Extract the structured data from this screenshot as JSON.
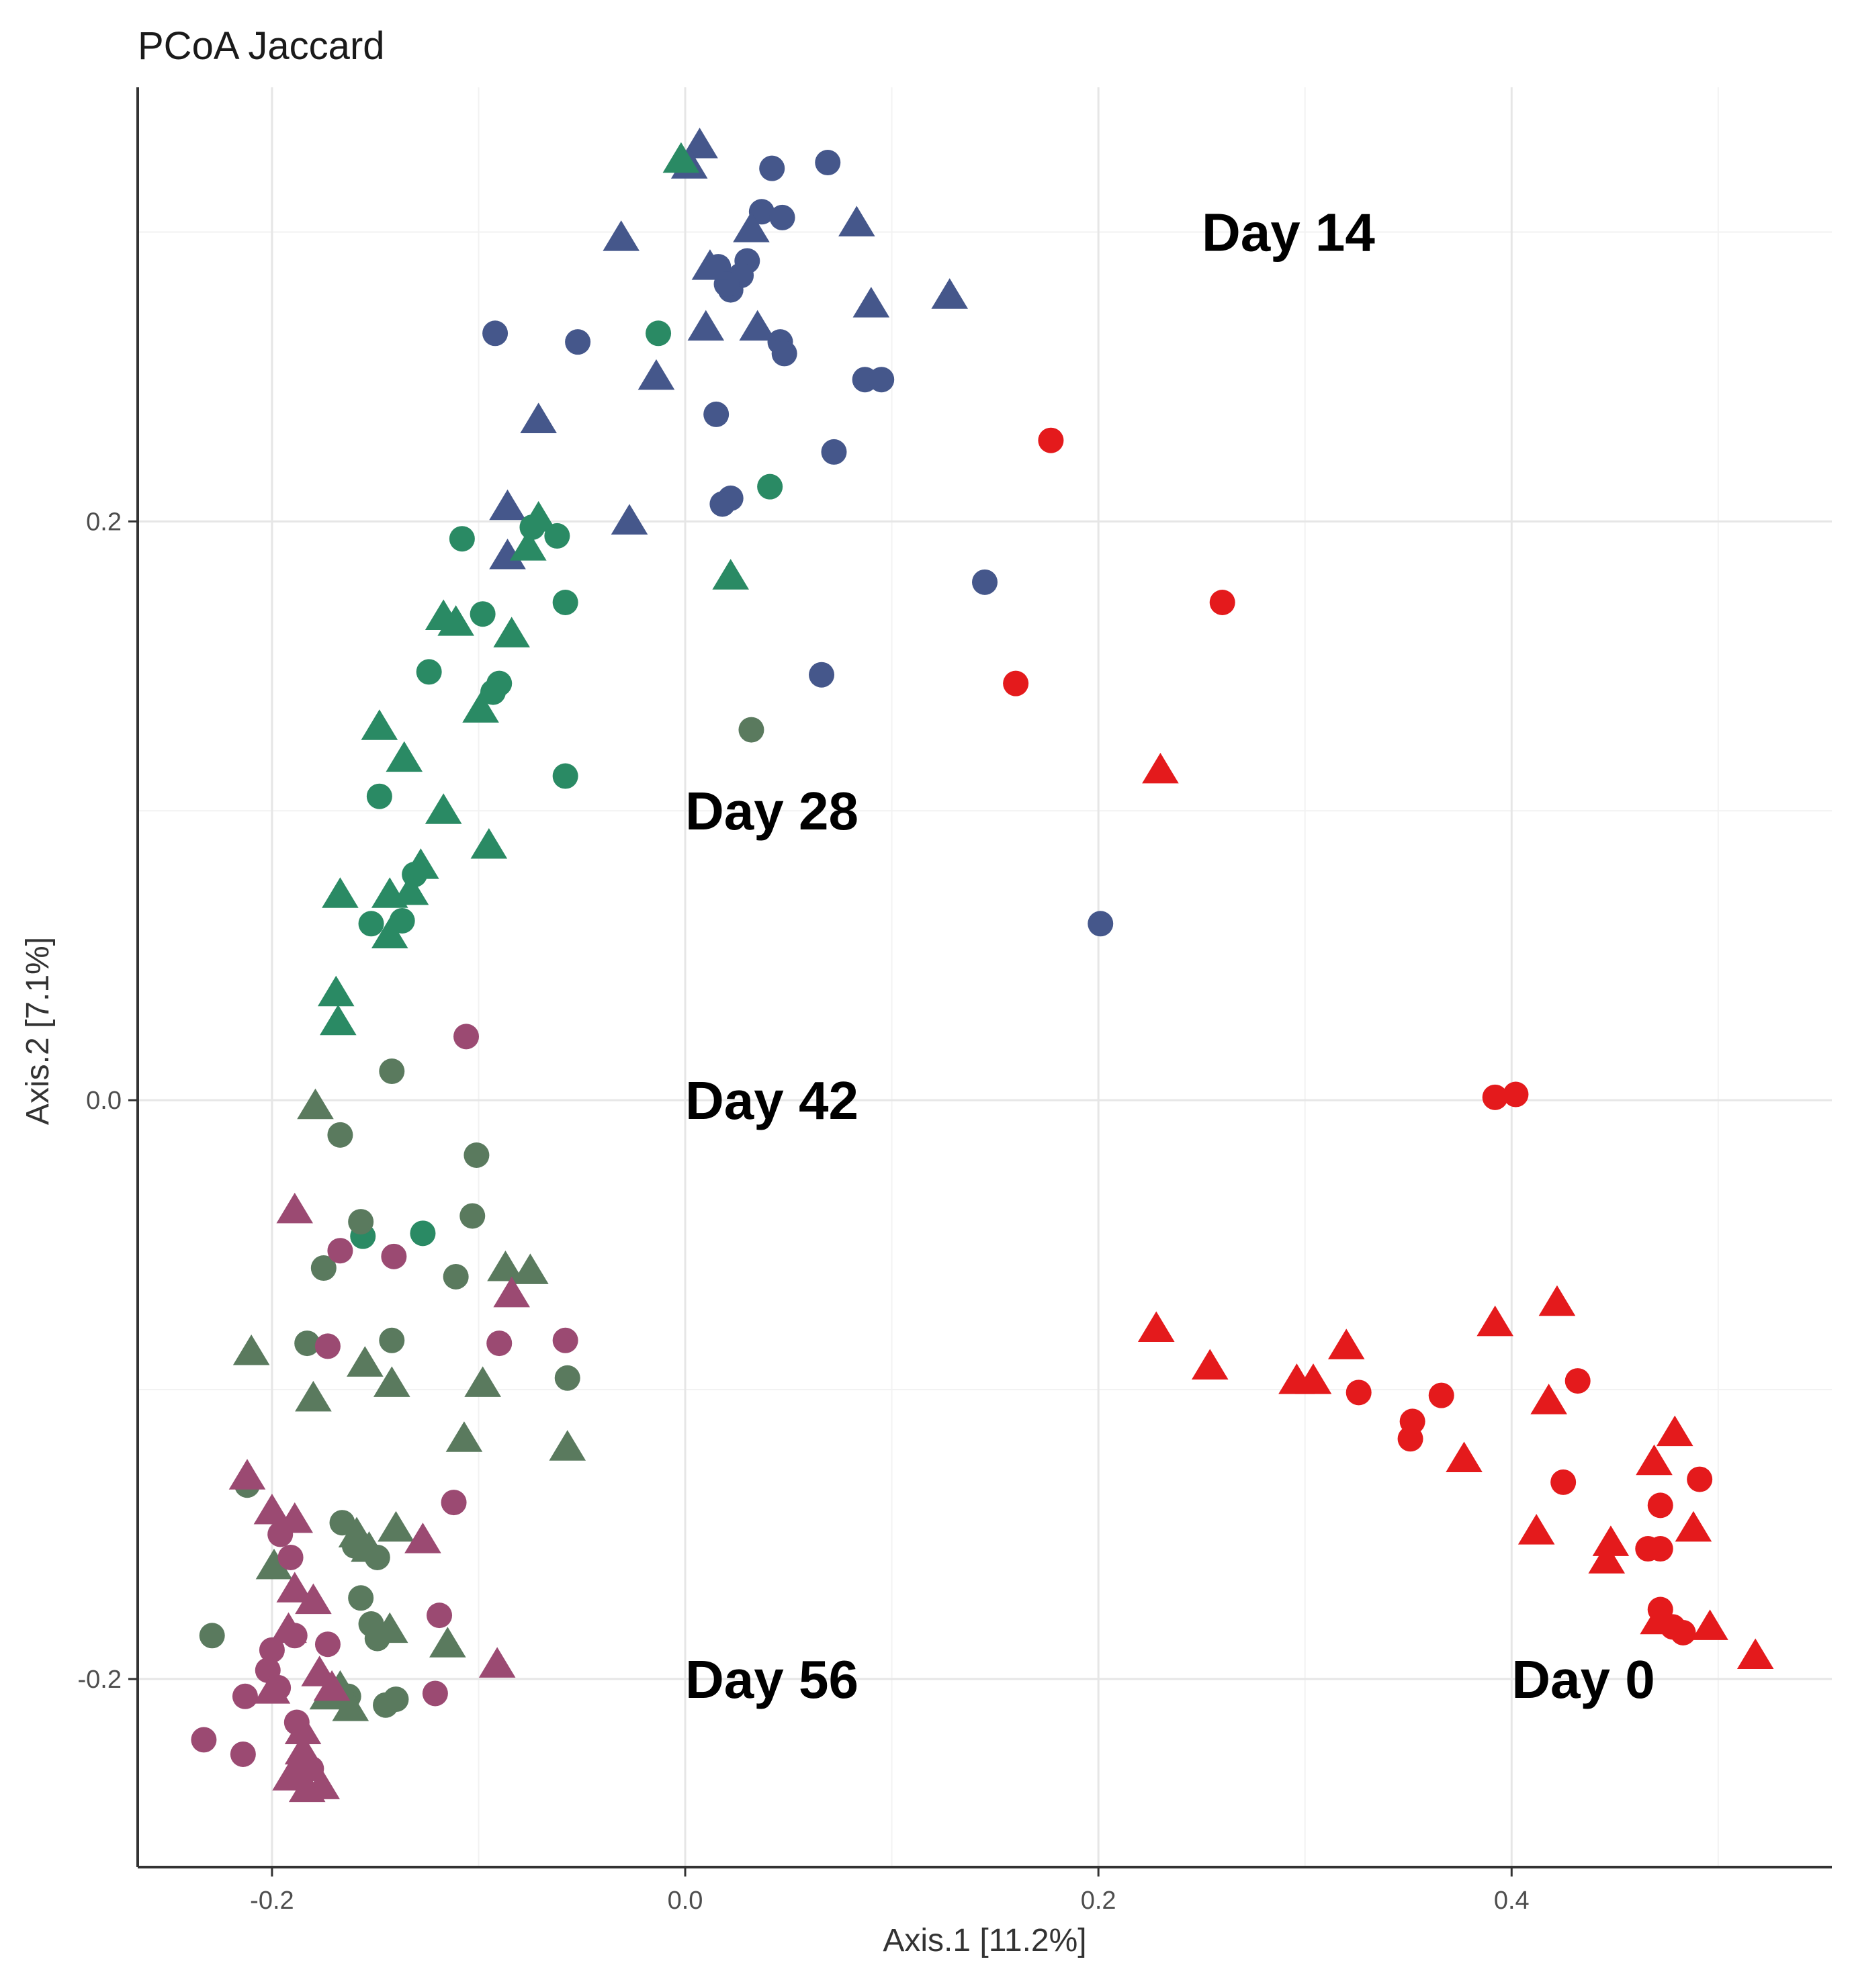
{
  "chart_data": {
    "type": "scatter",
    "title": "PCoA Jaccard",
    "xlabel": "Axis.1   [11.2%]",
    "ylabel": "Axis.2   [7.1%]",
    "xlim": [
      -0.265,
      0.555
    ],
    "ylim": [
      -0.265,
      0.35
    ],
    "xticks": [
      -0.2,
      0.0,
      0.2,
      0.4
    ],
    "xtick_labels": [
      "-0.2",
      "0.0",
      "0.2",
      "0.4"
    ],
    "yticks": [
      -0.2,
      0.0,
      0.2
    ],
    "ytick_labels": [
      "-0.2",
      "0.0",
      "0.2"
    ],
    "grid": true,
    "shape_note": "circle and triangle markers (two sample groups)",
    "annotations": [
      {
        "label": "Day 14",
        "x": 0.25,
        "y": 0.3
      },
      {
        "label": "Day 28",
        "x": 0.0,
        "y": 0.1
      },
      {
        "label": "Day 42",
        "x": 0.0,
        "y": 0.0
      },
      {
        "label": "Day 56",
        "x": 0.0,
        "y": -0.2
      },
      {
        "label": "Day 0",
        "x": 0.4,
        "y": -0.2
      }
    ],
    "series": [
      {
        "name": "Day 0",
        "color": "#e41a1c",
        "circles": [
          [
            0.177,
            0.228
          ],
          [
            0.26,
            0.172
          ],
          [
            0.16,
            0.144
          ],
          [
            0.392,
            0.001
          ],
          [
            0.402,
            0.002
          ],
          [
            0.326,
            -0.101
          ],
          [
            0.366,
            -0.102
          ],
          [
            0.351,
            -0.117
          ],
          [
            0.352,
            -0.111
          ],
          [
            0.432,
            -0.097
          ],
          [
            0.491,
            -0.131
          ],
          [
            0.425,
            -0.132
          ],
          [
            0.472,
            -0.14
          ],
          [
            0.466,
            -0.155
          ],
          [
            0.472,
            -0.155
          ],
          [
            0.472,
            -0.176
          ],
          [
            0.478,
            -0.182
          ],
          [
            0.483,
            -0.184
          ]
        ],
        "triangles": [
          [
            0.23,
            0.114
          ],
          [
            0.228,
            -0.079
          ],
          [
            0.254,
            -0.092
          ],
          [
            0.296,
            -0.097
          ],
          [
            0.304,
            -0.097
          ],
          [
            0.32,
            -0.085
          ],
          [
            0.377,
            -0.124
          ],
          [
            0.392,
            -0.077
          ],
          [
            0.422,
            -0.07
          ],
          [
            0.418,
            -0.104
          ],
          [
            0.412,
            -0.149
          ],
          [
            0.448,
            -0.153
          ],
          [
            0.446,
            -0.159
          ],
          [
            0.479,
            -0.115
          ],
          [
            0.469,
            -0.125
          ],
          [
            0.488,
            -0.148
          ],
          [
            0.471,
            -0.18
          ],
          [
            0.496,
            -0.182
          ],
          [
            0.518,
            -0.192
          ]
        ]
      },
      {
        "name": "Day 14",
        "color": "#45578b",
        "circles": [
          [
            0.042,
            0.322
          ],
          [
            0.069,
            0.324
          ],
          [
            0.037,
            0.307
          ],
          [
            0.047,
            0.305
          ],
          [
            0.03,
            0.29
          ],
          [
            0.027,
            0.285
          ],
          [
            0.016,
            0.288
          ],
          [
            0.022,
            0.28
          ],
          [
            0.02,
            0.282
          ],
          [
            0.046,
            0.262
          ],
          [
            0.048,
            0.258
          ],
          [
            -0.092,
            0.265
          ],
          [
            -0.052,
            0.262
          ],
          [
            0.087,
            0.249
          ],
          [
            0.095,
            0.249
          ],
          [
            0.015,
            0.237
          ],
          [
            0.072,
            0.224
          ],
          [
            0.022,
            0.208
          ],
          [
            0.018,
            0.206
          ],
          [
            0.145,
            0.179
          ],
          [
            0.066,
            0.147
          ],
          [
            0.201,
            0.061
          ]
        ],
        "triangles": [
          [
            0.007,
            0.33
          ],
          [
            -0.031,
            0.298
          ],
          [
            0.032,
            0.301
          ],
          [
            0.083,
            0.303
          ],
          [
            0.012,
            0.288
          ],
          [
            0.128,
            0.278
          ],
          [
            0.09,
            0.275
          ],
          [
            0.01,
            0.267
          ],
          [
            0.035,
            0.267
          ],
          [
            -0.014,
            0.25
          ],
          [
            -0.071,
            0.235
          ],
          [
            -0.086,
            0.205
          ],
          [
            -0.027,
            0.2
          ],
          [
            -0.086,
            0.188
          ],
          [
            0.002,
            0.323
          ]
        ]
      },
      {
        "name": "Day 28",
        "color": "#2a8a64",
        "circles": [
          [
            -0.013,
            0.265
          ],
          [
            0.041,
            0.212
          ],
          [
            -0.108,
            0.194
          ],
          [
            -0.062,
            0.195
          ],
          [
            -0.074,
            0.198
          ],
          [
            -0.058,
            0.172
          ],
          [
            -0.098,
            0.168
          ],
          [
            -0.124,
            0.148
          ],
          [
            -0.09,
            0.144
          ],
          [
            -0.093,
            0.141
          ],
          [
            -0.148,
            0.105
          ],
          [
            -0.058,
            0.112
          ],
          [
            -0.152,
            0.061
          ],
          [
            -0.131,
            0.078
          ],
          [
            -0.137,
            0.062
          ],
          [
            -0.156,
            -0.047
          ],
          [
            -0.127,
            -0.046
          ]
        ],
        "triangles": [
          [
            -0.002,
            0.325
          ],
          [
            -0.071,
            0.201
          ],
          [
            -0.076,
            0.191
          ],
          [
            0.022,
            0.181
          ],
          [
            -0.117,
            0.167
          ],
          [
            -0.111,
            0.165
          ],
          [
            -0.084,
            0.161
          ],
          [
            -0.099,
            0.135
          ],
          [
            -0.148,
            0.129
          ],
          [
            -0.136,
            0.118
          ],
          [
            -0.117,
            0.1
          ],
          [
            -0.095,
            0.088
          ],
          [
            -0.128,
            0.081
          ],
          [
            -0.133,
            0.072
          ],
          [
            -0.167,
            0.071
          ],
          [
            -0.143,
            0.071
          ],
          [
            -0.143,
            0.057
          ],
          [
            -0.169,
            0.037
          ],
          [
            -0.168,
            0.027
          ]
        ]
      },
      {
        "name": "Day 42",
        "color": "#5a7a5e",
        "circles": [
          [
            0.032,
            0.128
          ],
          [
            -0.142,
            0.01
          ],
          [
            -0.167,
            -0.012
          ],
          [
            -0.101,
            -0.019
          ],
          [
            -0.157,
            -0.042
          ],
          [
            -0.103,
            -0.04
          ],
          [
            -0.175,
            -0.058
          ],
          [
            -0.111,
            -0.061
          ],
          [
            -0.183,
            -0.084
          ],
          [
            -0.142,
            -0.083
          ],
          [
            -0.057,
            -0.096
          ],
          [
            -0.212,
            -0.133
          ],
          [
            -0.16,
            -0.154
          ],
          [
            -0.166,
            -0.146
          ],
          [
            -0.157,
            -0.172
          ],
          [
            -0.149,
            -0.158
          ],
          [
            -0.229,
            -0.185
          ],
          [
            -0.152,
            -0.181
          ],
          [
            -0.149,
            -0.186
          ],
          [
            -0.163,
            -0.206
          ],
          [
            -0.14,
            -0.207
          ],
          [
            -0.145,
            -0.209
          ]
        ],
        "triangles": [
          [
            -0.179,
            -0.002
          ],
          [
            -0.087,
            -0.058
          ],
          [
            -0.075,
            -0.059
          ],
          [
            -0.21,
            -0.087
          ],
          [
            -0.155,
            -0.091
          ],
          [
            -0.18,
            -0.103
          ],
          [
            -0.098,
            -0.098
          ],
          [
            -0.142,
            -0.098
          ],
          [
            -0.057,
            -0.12
          ],
          [
            -0.107,
            -0.117
          ],
          [
            -0.199,
            -0.161
          ],
          [
            -0.159,
            -0.15
          ],
          [
            -0.14,
            -0.148
          ],
          [
            -0.153,
            -0.155
          ],
          [
            -0.143,
            -0.183
          ],
          [
            -0.115,
            -0.188
          ],
          [
            -0.167,
            -0.203
          ],
          [
            -0.173,
            -0.206
          ],
          [
            -0.162,
            -0.21
          ]
        ]
      },
      {
        "name": "Day 56",
        "color": "#9b4a72",
        "circles": [
          [
            -0.106,
            0.022
          ],
          [
            -0.167,
            -0.052
          ],
          [
            -0.141,
            -0.054
          ],
          [
            -0.173,
            -0.085
          ],
          [
            -0.09,
            -0.084
          ],
          [
            -0.058,
            -0.083
          ],
          [
            -0.112,
            -0.139
          ],
          [
            -0.196,
            -0.15
          ],
          [
            -0.191,
            -0.158
          ],
          [
            -0.119,
            -0.178
          ],
          [
            -0.173,
            -0.188
          ],
          [
            -0.2,
            -0.19
          ],
          [
            -0.189,
            -0.185
          ],
          [
            -0.202,
            -0.197
          ],
          [
            -0.197,
            -0.203
          ],
          [
            -0.213,
            -0.206
          ],
          [
            -0.188,
            -0.215
          ],
          [
            -0.121,
            -0.205
          ],
          [
            -0.233,
            -0.221
          ],
          [
            -0.214,
            -0.226
          ],
          [
            -0.181,
            -0.231
          ],
          [
            -0.188,
            -0.233
          ]
        ],
        "triangles": [
          [
            -0.189,
            -0.038
          ],
          [
            -0.084,
            -0.067
          ],
          [
            -0.212,
            -0.13
          ],
          [
            -0.2,
            -0.142
          ],
          [
            -0.189,
            -0.145
          ],
          [
            -0.127,
            -0.152
          ],
          [
            -0.189,
            -0.169
          ],
          [
            -0.18,
            -0.173
          ],
          [
            -0.192,
            -0.183
          ],
          [
            -0.177,
            -0.198
          ],
          [
            -0.171,
            -0.203
          ],
          [
            -0.091,
            -0.195
          ],
          [
            -0.2,
            -0.204
          ],
          [
            -0.185,
            -0.218
          ],
          [
            -0.185,
            -0.225
          ],
          [
            -0.191,
            -0.234
          ],
          [
            -0.183,
            -0.238
          ],
          [
            -0.176,
            -0.237
          ]
        ]
      }
    ]
  }
}
